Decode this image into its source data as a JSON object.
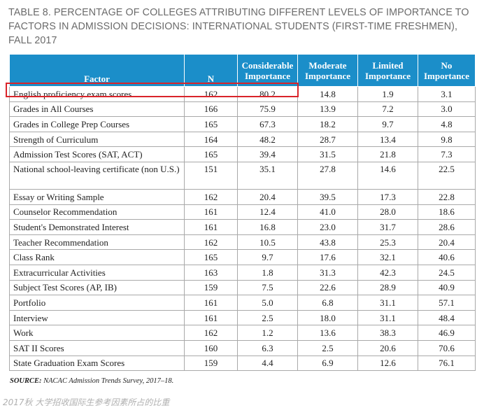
{
  "title": "TABLE 8. PERCENTAGE OF COLLEGES ATTRIBUTING DIFFERENT LEVELS OF IMPORTANCE TO FACTORS IN ADMISSION DECISIONS: INTERNATIONAL STUDENTS (FIRST-TIME FRESHMEN), FALL 2017",
  "columns": [
    "Factor",
    "N",
    "Considerable Importance",
    "Moderate Importance",
    "Limited Importance",
    "No Importance"
  ],
  "header": {
    "factor": "Factor",
    "n": "N",
    "considerable": [
      "Considerable",
      "Importance"
    ],
    "moderate": [
      "Moderate",
      "Importance"
    ],
    "limited": [
      "Limited",
      "Importance"
    ],
    "none": [
      "No",
      "Importance"
    ]
  },
  "rows": [
    {
      "factor": "English proficiency exam scores",
      "n": "162",
      "considerable": "80.2",
      "moderate": "14.8",
      "limited": "1.9",
      "none": "3.1"
    },
    {
      "factor": "Grades in All Courses",
      "n": "166",
      "considerable": "75.9",
      "moderate": "13.9",
      "limited": "7.2",
      "none": "3.0"
    },
    {
      "factor": "Grades in College Prep Courses",
      "n": "165",
      "considerable": "67.3",
      "moderate": "18.2",
      "limited": "9.7",
      "none": "4.8"
    },
    {
      "factor": "Strength of Curriculum",
      "n": "164",
      "considerable": "48.2",
      "moderate": "28.7",
      "limited": "13.4",
      "none": "9.8"
    },
    {
      "factor": "Admission Test Scores (SAT, ACT)",
      "n": "165",
      "considerable": "39.4",
      "moderate": "31.5",
      "limited": "21.8",
      "none": "7.3"
    },
    {
      "factor": "National school-leaving certificate (non U.S.)",
      "n": "151",
      "considerable": "35.1",
      "moderate": "27.8",
      "limited": "14.6",
      "none": "22.5"
    },
    {
      "factor": "Essay or Writing Sample",
      "n": "162",
      "considerable": "20.4",
      "moderate": "39.5",
      "limited": "17.3",
      "none": "22.8"
    },
    {
      "factor": "Counselor Recommendation",
      "n": "161",
      "considerable": "12.4",
      "moderate": "41.0",
      "limited": "28.0",
      "none": "18.6"
    },
    {
      "factor": "Student's Demonstrated Interest",
      "n": "161",
      "considerable": "16.8",
      "moderate": "23.0",
      "limited": "31.7",
      "none": "28.6"
    },
    {
      "factor": "Teacher Recommendation",
      "n": "162",
      "considerable": "10.5",
      "moderate": "43.8",
      "limited": "25.3",
      "none": "20.4"
    },
    {
      "factor": "Class Rank",
      "n": "165",
      "considerable": "9.7",
      "moderate": "17.6",
      "limited": "32.1",
      "none": "40.6"
    },
    {
      "factor": "Extracurricular Activities",
      "n": "163",
      "considerable": "1.8",
      "moderate": "31.3",
      "limited": "42.3",
      "none": "24.5"
    },
    {
      "factor": "Subject Test Scores (AP, IB)",
      "n": "159",
      "considerable": "7.5",
      "moderate": "22.6",
      "limited": "28.9",
      "none": "40.9"
    },
    {
      "factor": "Portfolio",
      "n": "161",
      "considerable": "5.0",
      "moderate": "6.8",
      "limited": "31.1",
      "none": "57.1"
    },
    {
      "factor": "Interview",
      "n": "161",
      "considerable": "2.5",
      "moderate": "18.0",
      "limited": "31.1",
      "none": "48.4"
    },
    {
      "factor": "Work",
      "n": "162",
      "considerable": "1.2",
      "moderate": "13.6",
      "limited": "38.3",
      "none": "46.9"
    },
    {
      "factor": "SAT II Scores",
      "n": "160",
      "considerable": "6.3",
      "moderate": "2.5",
      "limited": "20.6",
      "none": "70.6"
    },
    {
      "factor": "State Graduation Exam Scores",
      "n": "159",
      "considerable": "4.4",
      "moderate": "6.9",
      "limited": "12.6",
      "none": "76.1"
    }
  ],
  "source_label": "SOURCE:",
  "source_text": "NACAC Admission Trends Survey, 2017–18.",
  "caption": "2017秋 大学招收国际生参考因素所占的比重",
  "colors": {
    "header_bg": "#1b8ec9",
    "highlight": "#d9242a",
    "title": "#6b6b6b"
  }
}
